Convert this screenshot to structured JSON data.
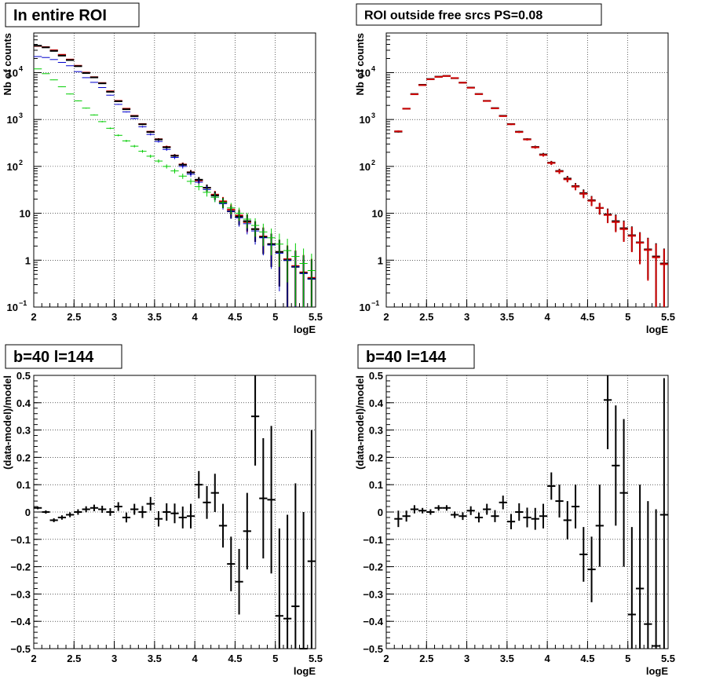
{
  "chart_data": [
    {
      "type": "scatter",
      "title": "In entire ROI",
      "xlabel": "logE",
      "ylabel": "Nb of counts",
      "xlim": [
        2,
        5.5
      ],
      "ylim": [
        0.1,
        70000
      ],
      "yscale": "log",
      "grid": true,
      "x_ticks": [
        "2",
        "2.5",
        "3",
        "3.5",
        "4",
        "4.5",
        "5",
        "5.5"
      ],
      "y_ticks": [
        {
          "value": 0.1,
          "base": "10",
          "exp": "−1"
        },
        {
          "value": 1,
          "label": "1"
        },
        {
          "value": 10,
          "label": "10"
        },
        {
          "value": 100,
          "base": "10",
          "exp": "2"
        },
        {
          "value": 1000,
          "base": "10",
          "exp": "3"
        },
        {
          "value": 10000,
          "base": "10",
          "exp": "4"
        }
      ],
      "bin_width": 0.1,
      "series": [
        {
          "color": "#cc0000",
          "x": [
            2.05,
            2.15,
            2.25,
            2.35,
            2.45,
            2.55,
            2.65,
            2.75,
            2.85,
            2.95,
            3.05,
            3.15,
            3.25,
            3.35,
            3.45,
            3.55,
            3.65,
            3.75,
            3.85,
            3.95,
            4.05,
            4.15,
            4.25,
            4.35,
            4.45,
            4.55,
            4.65,
            4.75,
            4.85,
            4.95,
            5.05,
            5.15,
            5.25,
            5.35,
            5.45
          ],
          "y": [
            37000,
            35000,
            30000,
            24000,
            19000,
            14000,
            10000,
            8000,
            6000,
            4000,
            2500,
            1700,
            1200,
            800,
            550,
            380,
            260,
            170,
            110,
            75,
            50,
            35,
            25,
            18,
            12,
            9,
            6.5,
            4.6,
            3.2,
            2.2,
            1.5,
            1.05,
            0.75,
            0.55,
            0.42
          ]
        },
        {
          "color": "#000000",
          "x": [
            2.05,
            2.15,
            2.25,
            2.35,
            2.45,
            2.55,
            2.65,
            2.75,
            2.85,
            2.95,
            3.05,
            3.15,
            3.25,
            3.35,
            3.45,
            3.55,
            3.65,
            3.75,
            3.85,
            3.95,
            4.05,
            4.15,
            4.25,
            4.35,
            4.45,
            4.55,
            4.65,
            4.75,
            4.85,
            4.95,
            5.05,
            5.15,
            5.25,
            5.35,
            5.45
          ],
          "y": [
            37500,
            34500,
            29000,
            23000,
            18500,
            13700,
            9800,
            7900,
            5900,
            3900,
            2450,
            1650,
            1180,
            790,
            540,
            375,
            255,
            168,
            108,
            74,
            52,
            35,
            24,
            17,
            11,
            8.5,
            6.8,
            4.6,
            3.1,
            2.2,
            1.5,
            1.0,
            0.72,
            0.53,
            0.4
          ]
        },
        {
          "color": "#0000cc",
          "x": [
            2.05,
            2.15,
            2.25,
            2.35,
            2.45,
            2.55,
            2.65,
            2.75,
            2.85,
            2.95,
            3.05,
            3.15,
            3.25,
            3.35,
            3.45,
            3.55,
            3.65,
            3.75,
            3.85,
            3.95,
            4.05,
            4.15,
            4.25,
            4.35,
            4.45,
            4.55,
            4.65,
            4.75,
            4.85,
            4.95,
            5.05,
            5.15,
            5.25,
            5.35,
            5.45
          ],
          "y": [
            22000,
            21000,
            19000,
            16500,
            14000,
            10500,
            7800,
            6200,
            4800,
            3300,
            2100,
            1450,
            1050,
            700,
            480,
            340,
            230,
            155,
            100,
            68,
            46,
            32,
            22,
            16,
            11,
            8,
            6,
            4.2,
            3,
            2.1,
            1.4,
            1.0,
            0.72,
            0.52,
            0.4
          ]
        },
        {
          "color": "#00cc00",
          "x": [
            2.05,
            2.15,
            2.25,
            2.35,
            2.45,
            2.55,
            2.65,
            2.75,
            2.85,
            2.95,
            3.05,
            3.15,
            3.25,
            3.35,
            3.45,
            3.55,
            3.65,
            3.75,
            3.85,
            3.95,
            4.05,
            4.15,
            4.25,
            4.35,
            4.45,
            4.55,
            4.65,
            4.75,
            4.85,
            4.95,
            5.05,
            5.15,
            5.25,
            5.35,
            5.45
          ],
          "y": [
            12000,
            9500,
            7000,
            5000,
            3500,
            2500,
            1750,
            1250,
            900,
            650,
            460,
            350,
            270,
            210,
            165,
            130,
            100,
            80,
            62,
            48,
            37,
            28,
            22,
            17,
            13,
            10,
            7.5,
            5.5,
            4,
            3,
            2.2,
            1.6,
            1.2,
            0.85,
            0.6
          ]
        }
      ]
    },
    {
      "type": "scatter",
      "title": "ROI outside free srcs PS=0.08",
      "xlabel": "logE",
      "ylabel": "Nb of counts",
      "xlim": [
        2,
        5.5
      ],
      "ylim": [
        0.1,
        70000
      ],
      "yscale": "log",
      "grid": true,
      "x_ticks": [
        "2",
        "2.5",
        "3",
        "3.5",
        "4",
        "4.5",
        "5",
        "5.5"
      ],
      "y_ticks": [
        {
          "value": 0.1,
          "base": "10",
          "exp": "−1"
        },
        {
          "value": 1,
          "label": "1"
        },
        {
          "value": 10,
          "label": "10"
        },
        {
          "value": 100,
          "base": "10",
          "exp": "2"
        },
        {
          "value": 1000,
          "base": "10",
          "exp": "3"
        },
        {
          "value": 10000,
          "base": "10",
          "exp": "4"
        }
      ],
      "bin_width": 0.1,
      "series": [
        {
          "color": "#000000",
          "x": [
            2.15,
            2.25,
            2.35,
            2.45,
            2.55,
            2.65,
            2.75,
            2.85,
            2.95,
            3.05,
            3.15,
            3.25,
            3.35,
            3.45,
            3.55,
            3.65,
            3.75,
            3.85,
            3.95,
            4.05,
            4.15,
            4.25,
            4.35,
            4.45,
            4.55,
            4.65,
            4.75,
            4.85,
            4.95,
            5.05,
            5.15,
            5.25,
            5.35,
            5.45
          ],
          "y": [
            550,
            1700,
            3500,
            5500,
            7300,
            8200,
            8500,
            7600,
            6100,
            4800,
            3500,
            2500,
            1750,
            1200,
            800,
            550,
            380,
            260,
            180,
            120,
            80,
            55,
            38,
            27,
            19,
            13,
            9.5,
            6.8,
            4.8,
            3.4,
            2.4,
            1.7,
            1.2,
            0.85
          ]
        },
        {
          "color": "#cc0000",
          "x": [
            2.15,
            2.25,
            2.35,
            2.45,
            2.55,
            2.65,
            2.75,
            2.85,
            2.95,
            3.05,
            3.15,
            3.25,
            3.35,
            3.45,
            3.55,
            3.65,
            3.75,
            3.85,
            3.95,
            4.05,
            4.15,
            4.25,
            4.35,
            4.45,
            4.55,
            4.65,
            4.75,
            4.85,
            4.95,
            5.05,
            5.15,
            5.25,
            5.35,
            5.45
          ],
          "y": [
            560,
            1700,
            3450,
            5400,
            7200,
            8100,
            8450,
            7650,
            6100,
            4750,
            3480,
            2480,
            1730,
            1180,
            790,
            540,
            375,
            255,
            175,
            118,
            78,
            53,
            37,
            26,
            18.5,
            13,
            9.2,
            6.5,
            4.6,
            3.3,
            2.35,
            1.65,
            1.15,
            0.82
          ]
        }
      ]
    },
    {
      "type": "scatter",
      "title": "b=40 l=144",
      "xlabel": "logE",
      "ylabel": "(data-model)/model",
      "xlim": [
        2,
        5.5
      ],
      "ylim": [
        -0.5,
        0.5
      ],
      "grid": true,
      "x_ticks": [
        "2",
        "2.5",
        "3",
        "3.5",
        "4",
        "4.5",
        "5",
        "5.5"
      ],
      "y_ticks": [
        "−0.5",
        "−0.4",
        "−0.3",
        "−0.2",
        "−0.1",
        "0",
        "0.1",
        "0.2",
        "0.3",
        "0.4",
        "0.5"
      ],
      "bin_width": 0.1,
      "series": [
        {
          "color": "#000000",
          "x": [
            2.05,
            2.15,
            2.25,
            2.35,
            2.45,
            2.55,
            2.65,
            2.75,
            2.85,
            2.95,
            3.05,
            3.15,
            3.25,
            3.35,
            3.45,
            3.55,
            3.65,
            3.75,
            3.85,
            3.95,
            4.05,
            4.15,
            4.25,
            4.35,
            4.45,
            4.55,
            4.65,
            4.75,
            4.85,
            4.95,
            5.05,
            5.15,
            5.25,
            5.35,
            5.45
          ],
          "y": [
            0.015,
            0,
            -0.03,
            -0.02,
            -0.01,
            0,
            0.01,
            0.015,
            0.01,
            0,
            0.02,
            -0.02,
            0.01,
            0,
            0.03,
            -0.025,
            0,
            -0.005,
            -0.02,
            -0.015,
            0.1,
            0.035,
            0.07,
            -0.05,
            -0.19,
            -0.255,
            -0.07,
            0.35,
            0.05,
            0.045,
            -0.38,
            -0.39,
            -0.345,
            -0.5,
            -0.18
          ],
          "err": [
            0.005,
            0.006,
            0.007,
            0.008,
            0.009,
            0.01,
            0.011,
            0.012,
            0.013,
            0.014,
            0.016,
            0.018,
            0.02,
            0.022,
            0.025,
            0.028,
            0.032,
            0.036,
            0.04,
            0.045,
            0.05,
            0.06,
            0.07,
            0.08,
            0.1,
            0.12,
            0.14,
            0.18,
            0.22,
            0.27,
            0.32,
            0.38,
            0.45,
            0.5,
            0.48
          ]
        }
      ]
    },
    {
      "type": "scatter",
      "title": "b=40 l=144",
      "xlabel": "logE",
      "ylabel": "(data-model)/model",
      "xlim": [
        2,
        5.5
      ],
      "ylim": [
        -0.5,
        0.5
      ],
      "grid": true,
      "x_ticks": [
        "2",
        "2.5",
        "3",
        "3.5",
        "4",
        "4.5",
        "5",
        "5.5"
      ],
      "y_ticks": [
        "−0.5",
        "−0.4",
        "−0.3",
        "−0.2",
        "−0.1",
        "0",
        "0.1",
        "0.2",
        "0.3",
        "0.4",
        "0.5"
      ],
      "bin_width": 0.1,
      "series": [
        {
          "color": "#000000",
          "x": [
            2.15,
            2.25,
            2.35,
            2.45,
            2.55,
            2.65,
            2.75,
            2.85,
            2.95,
            3.05,
            3.15,
            3.25,
            3.35,
            3.45,
            3.55,
            3.65,
            3.75,
            3.85,
            3.95,
            4.05,
            4.15,
            4.25,
            4.35,
            4.45,
            4.55,
            4.65,
            4.75,
            4.85,
            4.95,
            5.05,
            5.15,
            5.25,
            5.35,
            5.45
          ],
          "y": [
            -0.025,
            -0.015,
            0.01,
            0.005,
            0,
            0.015,
            0.015,
            -0.01,
            -0.015,
            0.005,
            -0.02,
            0.01,
            -0.015,
            0.035,
            -0.035,
            0,
            -0.02,
            -0.025,
            -0.015,
            0.095,
            0.04,
            -0.03,
            0.02,
            -0.155,
            -0.21,
            -0.05,
            0.41,
            0.17,
            0.07,
            -0.375,
            -0.28,
            -0.41,
            -0.49,
            -0.01
          ],
          "err": [
            0.03,
            0.02,
            0.015,
            0.01,
            0.01,
            0.01,
            0.01,
            0.012,
            0.014,
            0.016,
            0.018,
            0.02,
            0.022,
            0.025,
            0.028,
            0.032,
            0.036,
            0.04,
            0.045,
            0.05,
            0.06,
            0.07,
            0.08,
            0.1,
            0.12,
            0.15,
            0.18,
            0.22,
            0.27,
            0.32,
            0.38,
            0.45,
            0.5,
            0.5
          ]
        }
      ]
    }
  ]
}
